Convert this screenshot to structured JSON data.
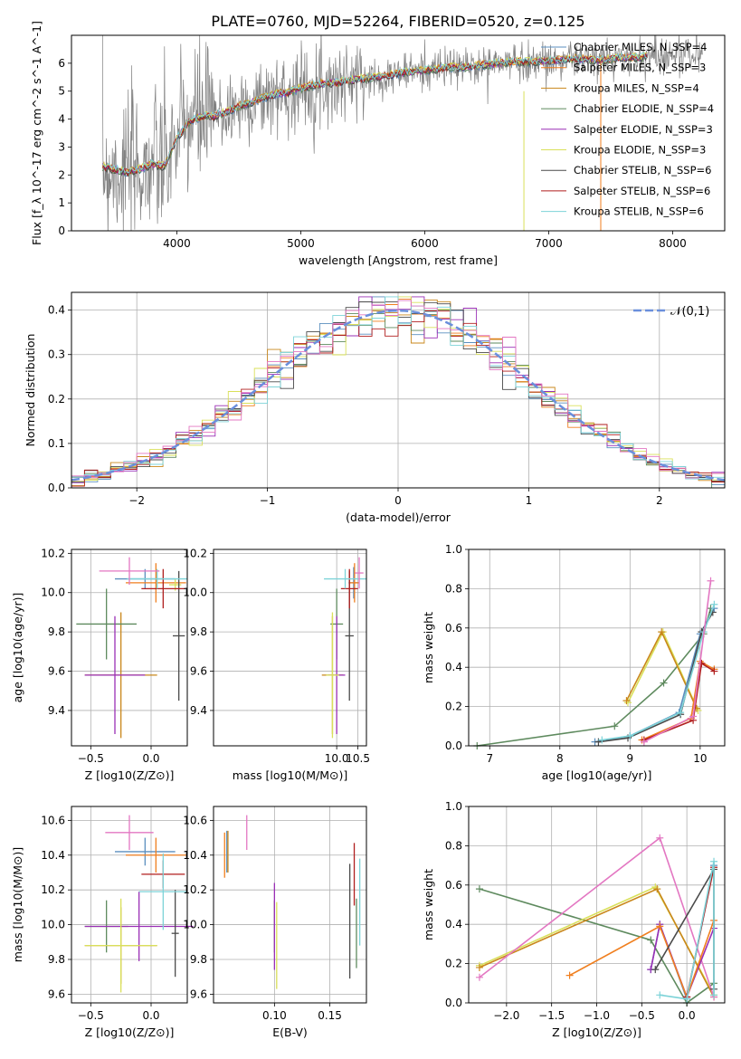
{
  "figure_title": "PLATE=0760, MJD=52264, FIBERID=0520, z=0.125",
  "colors": {
    "grid": "#b0b0b0",
    "data_spectrum": "#808080",
    "normal": "#6a8fdc"
  },
  "chart_data": [
    {
      "id": "spectrum",
      "type": "line",
      "title": "PLATE=0760, MJD=52264, FIBERID=0520, z=0.125",
      "xlabel": "wavelength [Angstrom, rest frame]",
      "ylabel": "Flux [f_λ 10^-17 erg cm^-2 s^-1 A^-1]",
      "xlim": [
        3150,
        8420
      ],
      "ylim": [
        0,
        7.0
      ],
      "xticks": [
        4000,
        5000,
        6000,
        7000,
        8000
      ],
      "yticks": [
        0,
        1,
        2,
        3,
        4,
        5,
        6
      ],
      "grid": false,
      "legend_position": "top-right",
      "data_color": "#808080",
      "model_continuum": {
        "x": [
          3400,
          3500,
          3600,
          3700,
          3800,
          3900,
          4000,
          4100,
          4200,
          4300,
          4400,
          4500,
          4600,
          4700,
          4800,
          4900,
          5000,
          5100,
          5200,
          5300,
          5400,
          5500,
          5600,
          5700,
          5800,
          5900,
          6000,
          6100,
          6200,
          6300,
          6400,
          6500,
          6600,
          6700,
          6800,
          6900,
          7000,
          7100,
          7200,
          7300,
          7400,
          7500,
          7600,
          7700,
          7800,
          7900,
          8000,
          8100,
          8200
        ],
        "y": [
          2.3,
          2.2,
          2.1,
          2.2,
          2.4,
          2.3,
          3.3,
          3.9,
          4.1,
          4.1,
          4.25,
          4.45,
          4.6,
          4.75,
          4.9,
          4.95,
          5.1,
          5.2,
          5.3,
          5.3,
          5.4,
          5.45,
          5.5,
          5.55,
          5.65,
          5.7,
          5.75,
          5.8,
          5.85,
          5.85,
          5.9,
          5.95,
          6.0,
          6.05,
          6.05,
          6.05,
          6.1,
          6.1,
          6.15,
          6.15,
          6.1,
          6.15,
          6.2,
          6.2,
          6.25,
          6.3,
          6.3,
          6.35,
          6.3
        ]
      },
      "series": [
        {
          "name": "Chabrier MILES, N_SSP=4",
          "color": "#5b8fbf"
        },
        {
          "name": "Salpeter MILES, N_SSP=3",
          "color": "#f07f1f"
        },
        {
          "name": "Kroupa MILES, N_SSP=4",
          "color": "#c9871b"
        },
        {
          "name": "Chabrier ELODIE, N_SSP=4",
          "color": "#5e8a5e"
        },
        {
          "name": "Salpeter ELODIE, N_SSP=3",
          "color": "#9a2fb5"
        },
        {
          "name": "Kroupa ELODIE, N_SSP=3",
          "color": "#d9e05a"
        },
        {
          "name": "Chabrier STELIB, N_SSP=6",
          "color": "#4a4a4a"
        },
        {
          "name": "Salpeter STELIB, N_SSP=6",
          "color": "#b01e1e"
        },
        {
          "name": "Kroupa STELIB, N_SSP=6",
          "color": "#7dd3d8"
        }
      ]
    },
    {
      "id": "residuals",
      "type": "step",
      "xlabel": "(data-model)/error",
      "ylabel": "Normed distribution",
      "xlim": [
        -2.5,
        2.5
      ],
      "ylim": [
        0,
        0.44
      ],
      "xticks": [
        -2,
        -1,
        0,
        1,
        2
      ],
      "yticks": [
        0.0,
        0.1,
        0.2,
        0.3,
        0.4
      ],
      "grid": true,
      "legend_position": "top-right",
      "reference": {
        "name": "𝒩(0,1)",
        "mean": 0,
        "sigma": 1
      },
      "bin_width": 0.1,
      "bin_start": -2.5
    },
    {
      "id": "age_vs_Z",
      "type": "errorbar",
      "xlabel": "Z [log10(Z/Z⊙)]",
      "ylabel": "age [log10(age/yr)]",
      "xlim": [
        -0.66,
        0.3
      ],
      "ylim": [
        9.22,
        10.22
      ],
      "xticks": [
        -0.5,
        0.0
      ],
      "yticks": [
        9.4,
        9.6,
        9.8,
        10.0,
        10.2
      ],
      "grid": true,
      "points": [
        {
          "x": -0.05,
          "xerr": 0.25,
          "y": 10.07,
          "yerr": 0.05,
          "color": "#5b8fbf"
        },
        {
          "x": 0.04,
          "xerr": 0.25,
          "y": 10.05,
          "yerr": 0.1,
          "color": "#f07f1f"
        },
        {
          "x": -0.25,
          "xerr": 0.3,
          "y": 9.58,
          "yerr": 0.32,
          "color": "#c9871b"
        },
        {
          "x": -0.37,
          "xerr": 0.25,
          "y": 9.84,
          "yerr": 0.18,
          "color": "#5e8a5e"
        },
        {
          "x": -0.3,
          "xerr": 0.25,
          "y": 9.58,
          "yerr": 0.3,
          "color": "#9a2fb5"
        },
        {
          "x": 0.2,
          "xerr": 0.05,
          "y": 10.04,
          "yerr": 0.03,
          "color": "#d9e05a"
        },
        {
          "x": 0.23,
          "xerr": 0.05,
          "y": 9.78,
          "yerr": 0.33,
          "color": "#4a4a4a"
        },
        {
          "x": 0.1,
          "xerr": 0.18,
          "y": 10.02,
          "yerr": 0.1,
          "color": "#b01e1e"
        },
        {
          "x": 0.05,
          "xerr": 0.25,
          "y": 10.07,
          "yerr": 0.05,
          "color": "#7dd3d8"
        },
        {
          "x": -0.18,
          "xerr": 0.25,
          "y": 10.11,
          "yerr": 0.07,
          "color": "#e377c2"
        }
      ]
    },
    {
      "id": "age_vs_mass",
      "type": "errorbar",
      "xlabel": "mass [log10(M/M⊙)]",
      "ylabel": "",
      "xlim": [
        7.1,
        10.7
      ],
      "ylim": [
        9.22,
        10.22
      ],
      "xticks": [
        10.0,
        10.5
      ],
      "yticks": [
        9.4,
        9.6,
        9.8,
        10.0,
        10.2
      ],
      "grid": true,
      "points": [
        {
          "x": 10.4,
          "xerr": 0.12,
          "y": 10.05,
          "yerr": 0.08,
          "color": "#5b8fbf"
        },
        {
          "x": 10.42,
          "xerr": 0.12,
          "y": 10.05,
          "yerr": 0.1,
          "color": "#f07f1f"
        },
        {
          "x": 9.9,
          "xerr": 0.25,
          "y": 9.58,
          "yerr": 0.3,
          "color": "#c9871b"
        },
        {
          "x": 10.0,
          "xerr": 0.15,
          "y": 9.84,
          "yerr": 0.18,
          "color": "#5e8a5e"
        },
        {
          "x": 10.0,
          "xerr": 0.2,
          "y": 9.58,
          "yerr": 0.3,
          "color": "#9a2fb5"
        },
        {
          "x": 9.9,
          "xerr": 0.15,
          "y": 9.58,
          "yerr": 0.32,
          "color": "#d9e05a"
        },
        {
          "x": 10.3,
          "xerr": 0.1,
          "y": 9.78,
          "yerr": 0.33,
          "color": "#4a4a4a"
        },
        {
          "x": 10.3,
          "xerr": 0.2,
          "y": 10.02,
          "yerr": 0.1,
          "color": "#b01e1e"
        },
        {
          "x": 10.2,
          "xerr": 0.5,
          "y": 10.07,
          "yerr": 0.05,
          "color": "#7dd3d8"
        },
        {
          "x": 10.53,
          "xerr": 0.1,
          "y": 10.1,
          "yerr": 0.08,
          "color": "#e377c2"
        }
      ]
    },
    {
      "id": "weight_vs_age",
      "type": "line",
      "xlabel": "age [log10(age/yr)]",
      "ylabel": "mass weight",
      "xlim": [
        6.7,
        10.35
      ],
      "ylim": [
        0,
        1.0
      ],
      "xticks": [
        7,
        8,
        9,
        10
      ],
      "yticks": [
        0.0,
        0.2,
        0.4,
        0.6,
        0.8,
        1.0
      ],
      "grid": true,
      "series": [
        {
          "color": "#5e8a5e",
          "x": [
            6.82,
            8.78,
            9.48,
            10.05,
            10.15
          ],
          "y": [
            0.0,
            0.1,
            0.32,
            0.57,
            0.7
          ]
        },
        {
          "color": "#d9e05a",
          "x": [
            8.97,
            9.47,
            9.97
          ],
          "y": [
            0.22,
            0.58,
            0.18
          ]
        },
        {
          "color": "#c9871b",
          "x": [
            8.95,
            9.45,
            9.95
          ],
          "y": [
            0.23,
            0.58,
            0.19
          ]
        },
        {
          "color": "#5b8fbf",
          "x": [
            8.5,
            9.0,
            9.7,
            10.0,
            10.2
          ],
          "y": [
            0.02,
            0.05,
            0.17,
            0.57,
            0.7
          ]
        },
        {
          "color": "#4a4a4a",
          "x": [
            8.55,
            8.97,
            9.72,
            10.02,
            10.18
          ],
          "y": [
            0.02,
            0.04,
            0.16,
            0.58,
            0.68
          ]
        },
        {
          "color": "#f07f1f",
          "x": [
            9.17,
            9.87,
            10.0,
            10.2
          ],
          "y": [
            0.03,
            0.14,
            0.43,
            0.39
          ]
        },
        {
          "color": "#b01e1e",
          "x": [
            9.2,
            9.9,
            10.02,
            10.2
          ],
          "y": [
            0.03,
            0.13,
            0.42,
            0.38
          ]
        },
        {
          "color": "#7dd3d8",
          "x": [
            8.6,
            9.0,
            9.72,
            10.05,
            10.2
          ],
          "y": [
            0.03,
            0.05,
            0.17,
            0.58,
            0.72
          ]
        },
        {
          "color": "#e377c2",
          "x": [
            9.2,
            9.9,
            10.15
          ],
          "y": [
            0.02,
            0.15,
            0.84
          ]
        }
      ]
    },
    {
      "id": "mass_vs_Z",
      "type": "errorbar",
      "xlabel": "Z [log10(Z/Z⊙)]",
      "ylabel": "mass [log10(M/M⊙)]",
      "xlim": [
        -0.66,
        0.3
      ],
      "ylim": [
        9.55,
        10.68
      ],
      "xticks": [
        -0.5,
        0.0
      ],
      "yticks": [
        9.6,
        9.8,
        10.0,
        10.2,
        10.4,
        10.6
      ],
      "grid": true,
      "points": [
        {
          "x": -0.05,
          "xerr": 0.25,
          "y": 10.42,
          "yerr": 0.08,
          "color": "#5b8fbf"
        },
        {
          "x": 0.04,
          "xerr": 0.25,
          "y": 10.4,
          "yerr": 0.1,
          "color": "#f07f1f"
        },
        {
          "x": -0.25,
          "xerr": 0.3,
          "y": 9.88,
          "yerr": 0.22,
          "color": "#c9871b"
        },
        {
          "x": -0.37,
          "xerr": 0.18,
          "y": 9.99,
          "yerr": 0.15,
          "color": "#5e8a5e"
        },
        {
          "x": -0.1,
          "xerr": 0.45,
          "y": 9.99,
          "yerr": 0.2,
          "color": "#9a2fb5"
        },
        {
          "x": -0.25,
          "xerr": 0.3,
          "y": 9.88,
          "yerr": 0.27,
          "color": "#d9e05a"
        },
        {
          "x": 0.2,
          "xerr": 0.03,
          "y": 9.95,
          "yerr": 0.25,
          "color": "#4a4a4a"
        },
        {
          "x": 0.1,
          "xerr": 0.18,
          "y": 10.29,
          "yerr": 0.08,
          "color": "#b01e1e"
        },
        {
          "x": 0.1,
          "xerr": 0.2,
          "y": 10.19,
          "yerr": 0.22,
          "color": "#7dd3d8"
        },
        {
          "x": -0.18,
          "xerr": 0.2,
          "y": 10.53,
          "yerr": 0.1,
          "color": "#e377c2"
        }
      ]
    },
    {
      "id": "mass_vs_EBV",
      "type": "errorbar",
      "xlabel": "E(B-V)",
      "ylabel": "",
      "xlim": [
        0.045,
        0.183
      ],
      "ylim": [
        9.55,
        10.68
      ],
      "xticks": [
        0.1,
        0.15
      ],
      "yticks": [
        9.6,
        9.8,
        10.0,
        10.2,
        10.4,
        10.6
      ],
      "grid": true,
      "points": [
        {
          "x": 0.057,
          "yerr": 0.12,
          "y": 10.42,
          "color": "#5b8fbf"
        },
        {
          "x": 0.055,
          "yerr": 0.13,
          "y": 10.4,
          "color": "#f07f1f"
        },
        {
          "x": 0.058,
          "yerr": 0.12,
          "y": 10.42,
          "color": "#c9871b"
        },
        {
          "x": 0.1,
          "yerr": 0.15,
          "y": 9.99,
          "color": "#5e8a5e"
        },
        {
          "x": 0.1,
          "yerr": 0.25,
          "y": 9.99,
          "color": "#9a2fb5"
        },
        {
          "x": 0.102,
          "yerr": 0.25,
          "y": 9.88,
          "color": "#d9e05a"
        },
        {
          "x": 0.168,
          "yerr": 0.33,
          "y": 10.02,
          "color": "#4a4a4a"
        },
        {
          "x": 0.172,
          "yerr": 0.18,
          "y": 10.29,
          "color": "#b01e1e"
        },
        {
          "x": 0.177,
          "yerr": 0.25,
          "y": 10.13,
          "color": "#7dd3d8"
        },
        {
          "x": 0.075,
          "yerr": 0.1,
          "y": 10.53,
          "color": "#e377c2"
        },
        {
          "x": 0.174,
          "yerr": 0.2,
          "y": 9.95,
          "color": "#5e8a5e"
        }
      ]
    },
    {
      "id": "weight_vs_Z",
      "type": "line",
      "xlabel": "Z [log10(Z/Z⊙)]",
      "ylabel": "mass weight",
      "xlim": [
        -2.42,
        0.42
      ],
      "ylim": [
        0,
        1.0
      ],
      "xticks": [
        -2.0,
        -1.5,
        -1.0,
        -0.5,
        0.0
      ],
      "yticks": [
        0.0,
        0.2,
        0.4,
        0.6,
        0.8,
        1.0
      ],
      "grid": true,
      "series": [
        {
          "color": "#5e8a5e",
          "x": [
            -2.3,
            -0.4,
            0.0,
            0.3
          ],
          "y": [
            0.58,
            0.32,
            0.0,
            0.1
          ]
        },
        {
          "color": "#d9e05a",
          "x": [
            -2.3,
            -0.35,
            0.3
          ],
          "y": [
            0.19,
            0.59,
            0.04
          ]
        },
        {
          "color": "#c9871b",
          "x": [
            -2.3,
            -0.33,
            0.3
          ],
          "y": [
            0.18,
            0.58,
            0.03
          ]
        },
        {
          "color": "#e377c2",
          "x": [
            -2.3,
            -0.3,
            0.3
          ],
          "y": [
            0.13,
            0.84,
            0.03
          ]
        },
        {
          "color": "#5b8fbf",
          "x": [
            -0.4,
            -0.3,
            0.0,
            0.3
          ],
          "y": [
            0.17,
            0.4,
            0.02,
            0.7
          ]
        },
        {
          "color": "#9a2fb5",
          "x": [
            -0.4,
            -0.3,
            0.0,
            0.3
          ],
          "y": [
            0.17,
            0.4,
            0.03,
            0.38
          ]
        },
        {
          "color": "#f07f1f",
          "x": [
            -1.3,
            -0.3,
            0.0,
            0.3
          ],
          "y": [
            0.14,
            0.39,
            0.03,
            0.42
          ]
        },
        {
          "color": "#b01e1e",
          "x": [
            0.0,
            0.3
          ],
          "y": [
            0.03,
            0.69
          ]
        },
        {
          "color": "#4a4a4a",
          "x": [
            -0.35,
            0.3,
            0.3
          ],
          "y": [
            0.17,
            0.68,
            0.07
          ]
        },
        {
          "color": "#7dd3d8",
          "x": [
            -0.3,
            0.0,
            0.3,
            0.3
          ],
          "y": [
            0.04,
            0.02,
            0.72,
            0.04
          ]
        }
      ]
    }
  ]
}
